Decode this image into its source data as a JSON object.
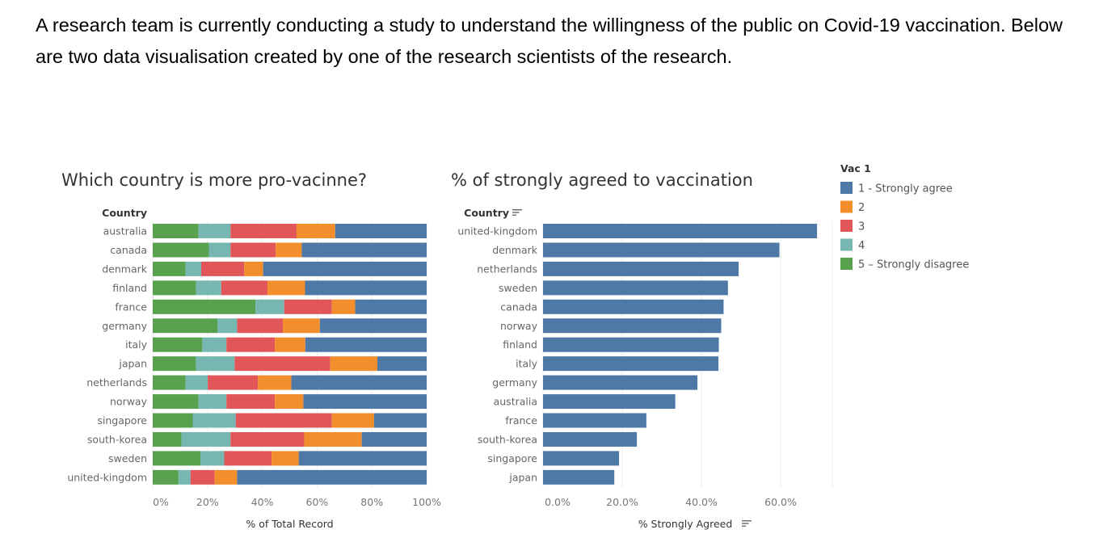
{
  "intro_text": "A research team is currently conducting a study to understand the willingness of the public on Covid-19 vaccination.  Below are two data visualisation created by one of the research scientists of the research.",
  "chart_data": [
    {
      "type": "bar",
      "stacked": true,
      "orientation": "horizontal",
      "title": "Which country is more pro-vacinne?",
      "ylabel": "Country",
      "xlabel": "% of Total Record",
      "xlim": [
        0,
        100
      ],
      "xticks": [
        "0%",
        "20%",
        "40%",
        "60%",
        "80%",
        "100%"
      ],
      "categories": [
        "australia",
        "canada",
        "denmark",
        "finland",
        "france",
        "germany",
        "italy",
        "japan",
        "netherlands",
        "norway",
        "singapore",
        "south-korea",
        "sweden",
        "united-kingdom"
      ],
      "series": [
        {
          "name": "5 - Strongly disagree",
          "color": "#59a14f",
          "values": [
            16.7,
            20.5,
            12.0,
            15.8,
            37.5,
            23.6,
            18.1,
            15.8,
            12.0,
            16.7,
            14.6,
            10.5,
            17.4,
            9.4
          ]
        },
        {
          "name": "4",
          "color": "#76b7b2",
          "values": [
            11.7,
            7.9,
            5.7,
            9.2,
            10.5,
            7.2,
            8.8,
            14.1,
            8.1,
            10.2,
            15.7,
            17.9,
            8.7,
            4.4
          ]
        },
        {
          "name": "3",
          "color": "#e15759",
          "values": [
            24.1,
            16.5,
            15.7,
            16.9,
            17.4,
            16.7,
            17.7,
            34.9,
            18.3,
            17.7,
            35.1,
            26.9,
            17.3,
            8.8
          ]
        },
        {
          "name": "2",
          "color": "#f28e2b",
          "values": [
            14.1,
            9.5,
            6.9,
            13.7,
            8.5,
            13.5,
            11.1,
            17.2,
            12.2,
            10.4,
            15.4,
            21.0,
            9.9,
            8.2
          ]
        },
        {
          "name": "1 - Strongly agree",
          "color": "#4e79a7",
          "values": [
            33.4,
            45.6,
            59.7,
            44.4,
            26.1,
            39.0,
            44.3,
            18.0,
            49.4,
            45.0,
            19.2,
            23.7,
            46.7,
            69.2
          ]
        }
      ]
    },
    {
      "type": "bar",
      "orientation": "horizontal",
      "title": "% of strongly agreed to vaccination",
      "ylabel": "Country",
      "xlabel": "% Strongly Agreed",
      "xlim": [
        0,
        72
      ],
      "xticks": [
        "0.0%",
        "20.0%",
        "40.0%",
        "60.0%"
      ],
      "color": "#4e79a7",
      "categories": [
        "united-kingdom",
        "denmark",
        "netherlands",
        "sweden",
        "canada",
        "norway",
        "finland",
        "italy",
        "germany",
        "australia",
        "france",
        "south-korea",
        "singapore",
        "japan"
      ],
      "values": [
        69.2,
        59.7,
        49.4,
        46.7,
        45.6,
        45.0,
        44.4,
        44.3,
        39.0,
        33.4,
        26.1,
        23.7,
        19.2,
        18.0
      ]
    }
  ],
  "legend": {
    "title": "Vac 1",
    "items": [
      {
        "label": "1 - Strongly agree",
        "color": "#4e79a7"
      },
      {
        "label": "2",
        "color": "#f28e2b"
      },
      {
        "label": "3",
        "color": "#e15759"
      },
      {
        "label": "4",
        "color": "#76b7b2"
      },
      {
        "label": "5 – Strongly disagree",
        "color": "#59a14f"
      }
    ]
  }
}
